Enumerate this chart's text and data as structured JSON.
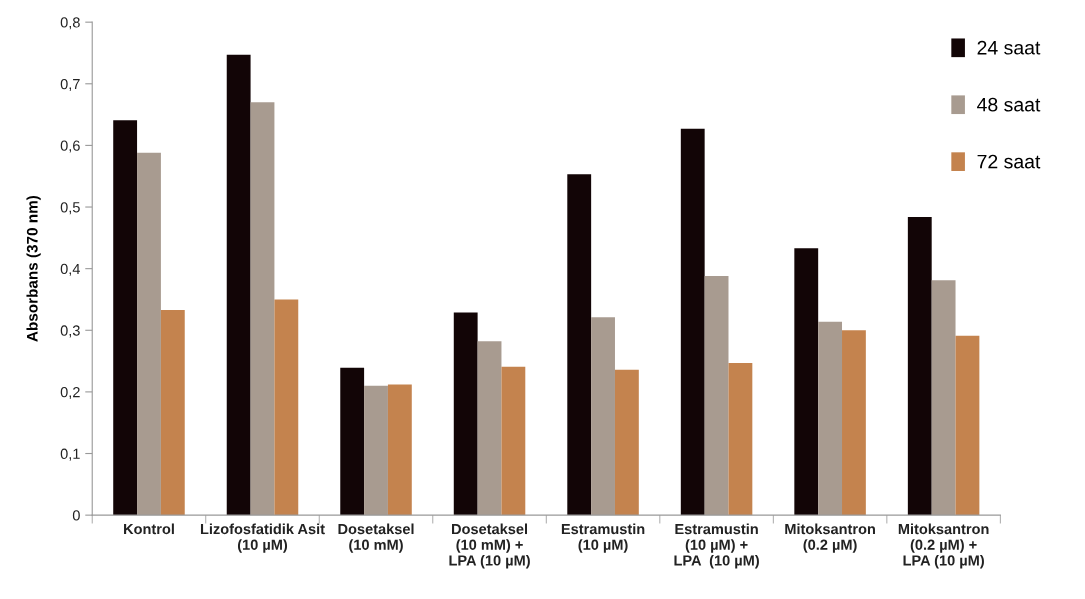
{
  "chart_data": {
    "type": "bar",
    "ylabel": "Absorbans (370 nm)",
    "categories": [
      "Kontrol",
      "Lizofosfatidik Asit\n(10 µM)",
      "Dosetaksel\n(10 mM)",
      "Dosetaksel\n(10 mM) +\nLPA (10 µM)",
      "Estramustin\n(10 µM)",
      "Estramustin\n(10 µM) +\nLPA  (10 µM)",
      "Mitoksantron\n(0.2 µM)",
      "Mitoksantron\n(0.2 µM) +\nLPA (10 µM)"
    ],
    "series": [
      {
        "name": "24 saat",
        "color": "#120506",
        "values": [
          0.641,
          0.747,
          0.239,
          0.329,
          0.553,
          0.627,
          0.433,
          0.484
        ]
      },
      {
        "name": "48 saat",
        "color": "#a89b90",
        "values": [
          0.588,
          0.67,
          0.21,
          0.282,
          0.321,
          0.388,
          0.314,
          0.381
        ]
      },
      {
        "name": "72 saat",
        "color": "#c4834e",
        "values": [
          0.333,
          0.35,
          0.212,
          0.241,
          0.236,
          0.247,
          0.3,
          0.291
        ]
      }
    ],
    "ylim": [
      0,
      0.8
    ],
    "yticks": [
      0,
      {
        "value": 0.1,
        "label": "0,1"
      },
      {
        "value": 0.2,
        "label": "0,2"
      },
      {
        "value": 0.3,
        "label": "0,3"
      },
      {
        "value": 0.4,
        "label": "0,4"
      },
      {
        "value": 0.5,
        "label": "0,5"
      },
      {
        "value": 0.6,
        "label": "0,6"
      },
      {
        "value": 0.7,
        "label": "0,7"
      },
      {
        "value": 0.8,
        "label": "0,8"
      }
    ],
    "grid": false,
    "legend": "top right"
  }
}
